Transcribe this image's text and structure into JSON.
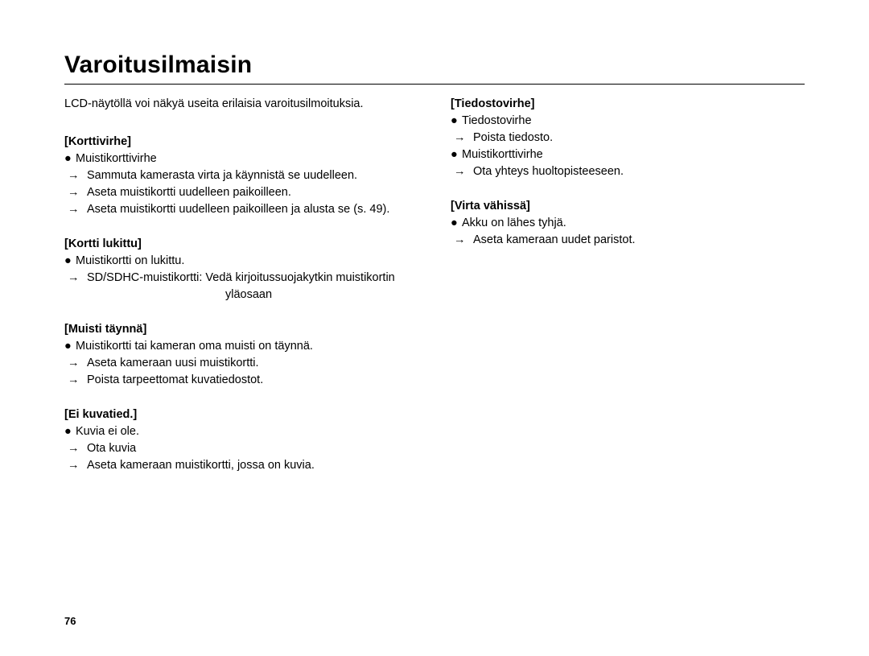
{
  "title": "Varoitusilmaisin",
  "intro": "LCD-näytöllä voi näkyä useita erilaisia varoitusilmoituksia.",
  "pageNumber": "76",
  "glyphs": {
    "bullet": "●",
    "arrow": "→"
  },
  "left": {
    "sections": [
      {
        "heading": "[Korttivirhe]",
        "bullets": [
          {
            "text": "Muistikorttivirhe"
          }
        ],
        "arrows": [
          {
            "text": "Sammuta kamerasta virta ja käynnistä se uudelleen."
          },
          {
            "text": "Aseta muistikortti uudelleen paikoilleen."
          },
          {
            "text": "Aseta muistikortti uudelleen paikoilleen ja alusta se (s. 49)."
          }
        ]
      },
      {
        "heading": "[Kortti lukittu]",
        "bullets": [
          {
            "text": "Muistikortti on lukittu."
          }
        ],
        "arrows": [
          {
            "text": "SD/SDHC-muistikortti: Vedä kirjoitussuojakytkin muistikortin",
            "cont": "yläosaan"
          }
        ]
      },
      {
        "heading": "[Muisti täynnä]",
        "bullets": [
          {
            "text": "Muistikortti tai kameran oma muisti on täynnä."
          }
        ],
        "arrows": [
          {
            "text": "Aseta kameraan uusi muistikortti."
          },
          {
            "text": "Poista tarpeettomat kuvatiedostot."
          }
        ]
      },
      {
        "heading": "[Ei kuvatied.]",
        "bullets": [
          {
            "text": "Kuvia ei ole."
          }
        ],
        "arrows": [
          {
            "text": "Ota kuvia"
          },
          {
            "text": "Aseta kameraan muistikortti, jossa on kuvia."
          }
        ]
      }
    ]
  },
  "right": {
    "sections": [
      {
        "heading": "[Tiedostovirhe]",
        "bullets": [
          {
            "text": "Tiedostovirhe"
          }
        ],
        "arrows": [
          {
            "text": "Poista tiedosto."
          }
        ],
        "bullets2": [
          {
            "text": "Muistikorttivirhe"
          }
        ],
        "arrows2": [
          {
            "text": "Ota yhteys huoltopisteeseen."
          }
        ]
      },
      {
        "heading": "[Virta vähissä]",
        "bullets": [
          {
            "text": "Akku on lähes tyhjä."
          }
        ],
        "arrows": [
          {
            "text": "Aseta kameraan uudet paristot."
          }
        ]
      }
    ]
  }
}
